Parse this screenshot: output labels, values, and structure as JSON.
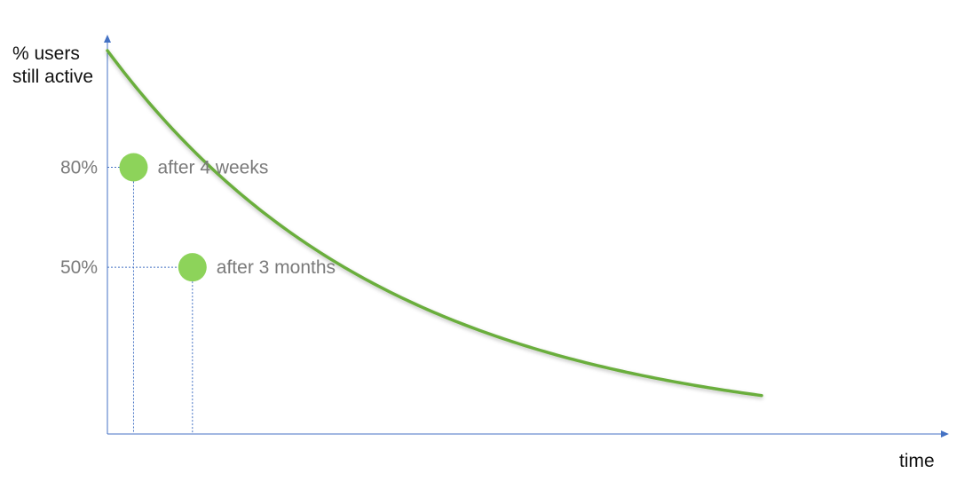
{
  "chart_data": {
    "type": "line",
    "title": "",
    "ylabel_lines": [
      "% users",
      "still active"
    ],
    "xlabel": "time",
    "yticks": [
      {
        "value": 80,
        "label": "80%"
      },
      {
        "value": 50,
        "label": "50%"
      }
    ],
    "ylim": [
      0,
      115
    ],
    "grid": false,
    "legend": "none",
    "series": [
      {
        "y_start": 115,
        "decay_rate": 2.3
      }
    ],
    "annotations": [
      {
        "x": 0.04,
        "y": 80,
        "label": "after 4 weeks"
      },
      {
        "x": 0.13,
        "y": 50,
        "label": "after 3 months"
      }
    ],
    "colors": {
      "axis": "#4472c4",
      "curve": "#6aae3c",
      "marker": "#8dd35a",
      "guide": "#4472c4"
    }
  }
}
